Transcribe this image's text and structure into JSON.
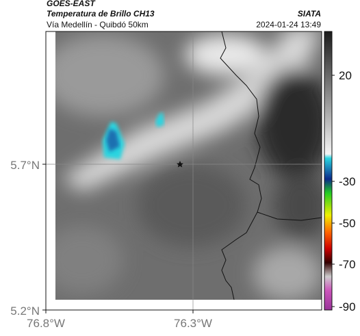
{
  "header": {
    "product": "GOES-EAST",
    "title": "Temperatura de Brillo CH13",
    "source": "SIATA",
    "subtitle": "Vía Medellín - Quibdó 50km",
    "datetime": "2024-01-24 13:49"
  },
  "map": {
    "lat_labels": [
      "5.7°N",
      "5.2°N"
    ],
    "lon_labels": [
      "76.8°W",
      "76.3°W"
    ]
  },
  "colorbar": {
    "tick_labels": [
      "20",
      "-30",
      "-50",
      "-70",
      "-90"
    ]
  }
}
